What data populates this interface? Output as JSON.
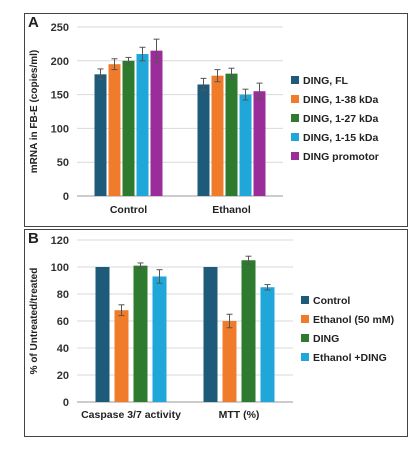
{
  "chart_data": [
    {
      "panel": "A",
      "type": "bar",
      "title": "",
      "xlabel": "",
      "ylabel": "mRNA in FB-E (copies/ml)",
      "ylim": [
        0,
        250
      ],
      "yticks": [
        0,
        50,
        100,
        150,
        200,
        250
      ],
      "grid": true,
      "legend_position": "right",
      "categories": [
        "Control",
        "Ethanol"
      ],
      "series": [
        {
          "name": "DING, FL",
          "color": "#1e5a79",
          "values": [
            180,
            165
          ],
          "errors": [
            8,
            9
          ]
        },
        {
          "name": "DING, 1-38 kDa",
          "color": "#f07c2b",
          "values": [
            195,
            178
          ],
          "errors": [
            8,
            9
          ]
        },
        {
          "name": "DING, 1-27 kDa",
          "color": "#2e7a2f",
          "values": [
            200,
            181
          ],
          "errors": [
            5,
            8
          ]
        },
        {
          "name": "DING, 1-15 kDa",
          "color": "#1ea7d8",
          "values": [
            210,
            150
          ],
          "errors": [
            10,
            8
          ]
        },
        {
          "name": "DING promotor",
          "color": "#9b2d9b",
          "values": [
            215,
            155
          ],
          "errors": [
            17,
            12
          ]
        }
      ]
    },
    {
      "panel": "B",
      "type": "bar",
      "title": "",
      "xlabel": "",
      "ylabel": "% of Untreated/treated",
      "ylim": [
        0,
        120
      ],
      "yticks": [
        0,
        20,
        40,
        60,
        80,
        100,
        120
      ],
      "grid": true,
      "legend_position": "right",
      "categories": [
        "Caspase 3/7 activity",
        "MTT (%)"
      ],
      "series": [
        {
          "name": "Control",
          "color": "#1e5a79",
          "values": [
            100,
            100
          ],
          "errors": [
            0,
            0
          ]
        },
        {
          "name": "Ethanol (50 mM)",
          "color": "#f07c2b",
          "values": [
            68,
            60
          ],
          "errors": [
            4,
            5
          ]
        },
        {
          "name": "DING",
          "color": "#2e7a2f",
          "values": [
            101,
            105
          ],
          "errors": [
            2,
            3
          ]
        },
        {
          "name": "Ethanol +DING",
          "color": "#1ea7d8",
          "values": [
            93,
            85
          ],
          "errors": [
            5,
            2
          ]
        }
      ]
    }
  ]
}
